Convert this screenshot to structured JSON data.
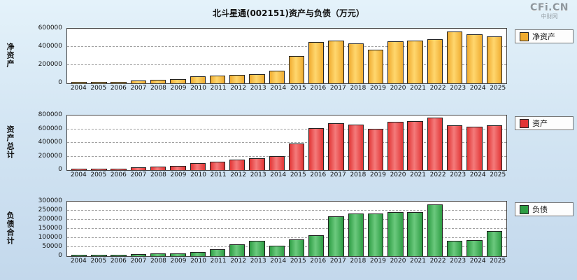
{
  "title": "北斗星通(002151)资产与负债（万元）",
  "logo": {
    "brand": "CFi.CN",
    "sub": "中财网"
  },
  "chart_data": [
    {
      "type": "bar",
      "ylabel": "净资产",
      "legend_label": "净资产",
      "bar_color": "#F0AC30",
      "bar_highlight": "#FFD76E",
      "ylim": [
        0,
        600000
      ],
      "yticks": [
        0,
        200000,
        400000,
        600000
      ],
      "grid": "dashed",
      "legend_position": "right",
      "categories": [
        "2004",
        "2005",
        "2006",
        "2007",
        "2008",
        "2009",
        "2010",
        "2011",
        "2012",
        "2013",
        "2014",
        "2015",
        "2016",
        "2017",
        "2018",
        "2019",
        "2020",
        "2021",
        "2022",
        "2023",
        "2024",
        "2025"
      ],
      "values": [
        5000,
        7000,
        9000,
        20000,
        28000,
        40000,
        70000,
        78000,
        84000,
        95000,
        130000,
        290000,
        450000,
        460000,
        430000,
        360000,
        455000,
        460000,
        480000,
        565000,
        530000,
        505000
      ]
    },
    {
      "type": "bar",
      "ylabel": "资产总计",
      "legend_label": "资产",
      "bar_color": "#E23535",
      "bar_highlight": "#F47B7B",
      "ylim": [
        0,
        800000
      ],
      "yticks": [
        0,
        200000,
        400000,
        600000,
        800000
      ],
      "grid": "dashed",
      "legend_position": "right",
      "categories": [
        "2004",
        "2005",
        "2006",
        "2007",
        "2008",
        "2009",
        "2010",
        "2011",
        "2012",
        "2013",
        "2014",
        "2015",
        "2016",
        "2017",
        "2018",
        "2019",
        "2020",
        "2021",
        "2022",
        "2023",
        "2024",
        "2025"
      ],
      "values": [
        9000,
        11000,
        14000,
        28000,
        38000,
        50000,
        90000,
        115000,
        140000,
        165000,
        190000,
        380000,
        610000,
        680000,
        655000,
        590000,
        700000,
        710000,
        755000,
        650000,
        625000,
        650000
      ]
    },
    {
      "type": "bar",
      "ylabel": "负债合计",
      "legend_label": "负债",
      "bar_color": "#2E9E44",
      "bar_highlight": "#6CC97E",
      "ylim": [
        0,
        300000
      ],
      "yticks": [
        0,
        50000,
        100000,
        150000,
        200000,
        250000,
        300000
      ],
      "grid": "dashed",
      "legend_position": "right",
      "categories": [
        "2004",
        "2005",
        "2006",
        "2007",
        "2008",
        "2009",
        "2010",
        "2011",
        "2012",
        "2013",
        "2014",
        "2015",
        "2016",
        "2017",
        "2018",
        "2019",
        "2020",
        "2021",
        "2022",
        "2023",
        "2024",
        "2025"
      ],
      "values": [
        3000,
        4000,
        5000,
        8000,
        10000,
        13000,
        20000,
        35000,
        60000,
        80000,
        55000,
        88000,
        110000,
        215000,
        230000,
        232000,
        240000,
        238000,
        280000,
        80000,
        85000,
        135000
      ]
    }
  ]
}
